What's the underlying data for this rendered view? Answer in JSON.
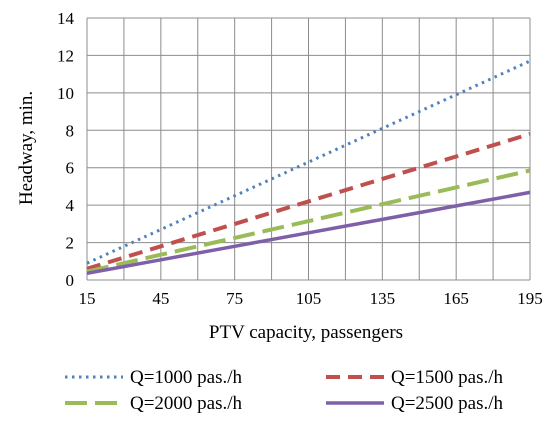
{
  "chart_data": {
    "type": "line",
    "title": "",
    "xlabel": "PTV capacity, passengers",
    "ylabel": "Headway, min.",
    "x": [
      15,
      45,
      75,
      105,
      135,
      165,
      195
    ],
    "x_ticks": [
      "15",
      "45",
      "75",
      "105",
      "135",
      "165",
      "195"
    ],
    "y_ticks": [
      "0",
      "2",
      "4",
      "6",
      "8",
      "10",
      "12",
      "14"
    ],
    "xlim": [
      15,
      195
    ],
    "ylim": [
      0,
      14
    ],
    "grid": true,
    "legend_position": "bottom",
    "series": [
      {
        "name": "Q=1000 pas./h",
        "values": [
          0.9,
          2.7,
          4.5,
          6.3,
          8.1,
          9.9,
          11.7
        ],
        "color": "#4f81bd",
        "style": "dotted"
      },
      {
        "name": "Q=1500 pas./h",
        "values": [
          0.6,
          1.8,
          3.0,
          4.2,
          5.4,
          6.6,
          7.8
        ],
        "color": "#c0504d",
        "style": "dashed"
      },
      {
        "name": "Q=2000 pas./h",
        "values": [
          0.45,
          1.35,
          2.25,
          3.15,
          4.05,
          4.95,
          5.85
        ],
        "color": "#9bbb59",
        "style": "long-dash"
      },
      {
        "name": "Q=2500 pas./h",
        "values": [
          0.36,
          1.08,
          1.8,
          2.52,
          3.24,
          3.96,
          4.68
        ],
        "color": "#7f5fa8",
        "style": "solid"
      }
    ]
  }
}
